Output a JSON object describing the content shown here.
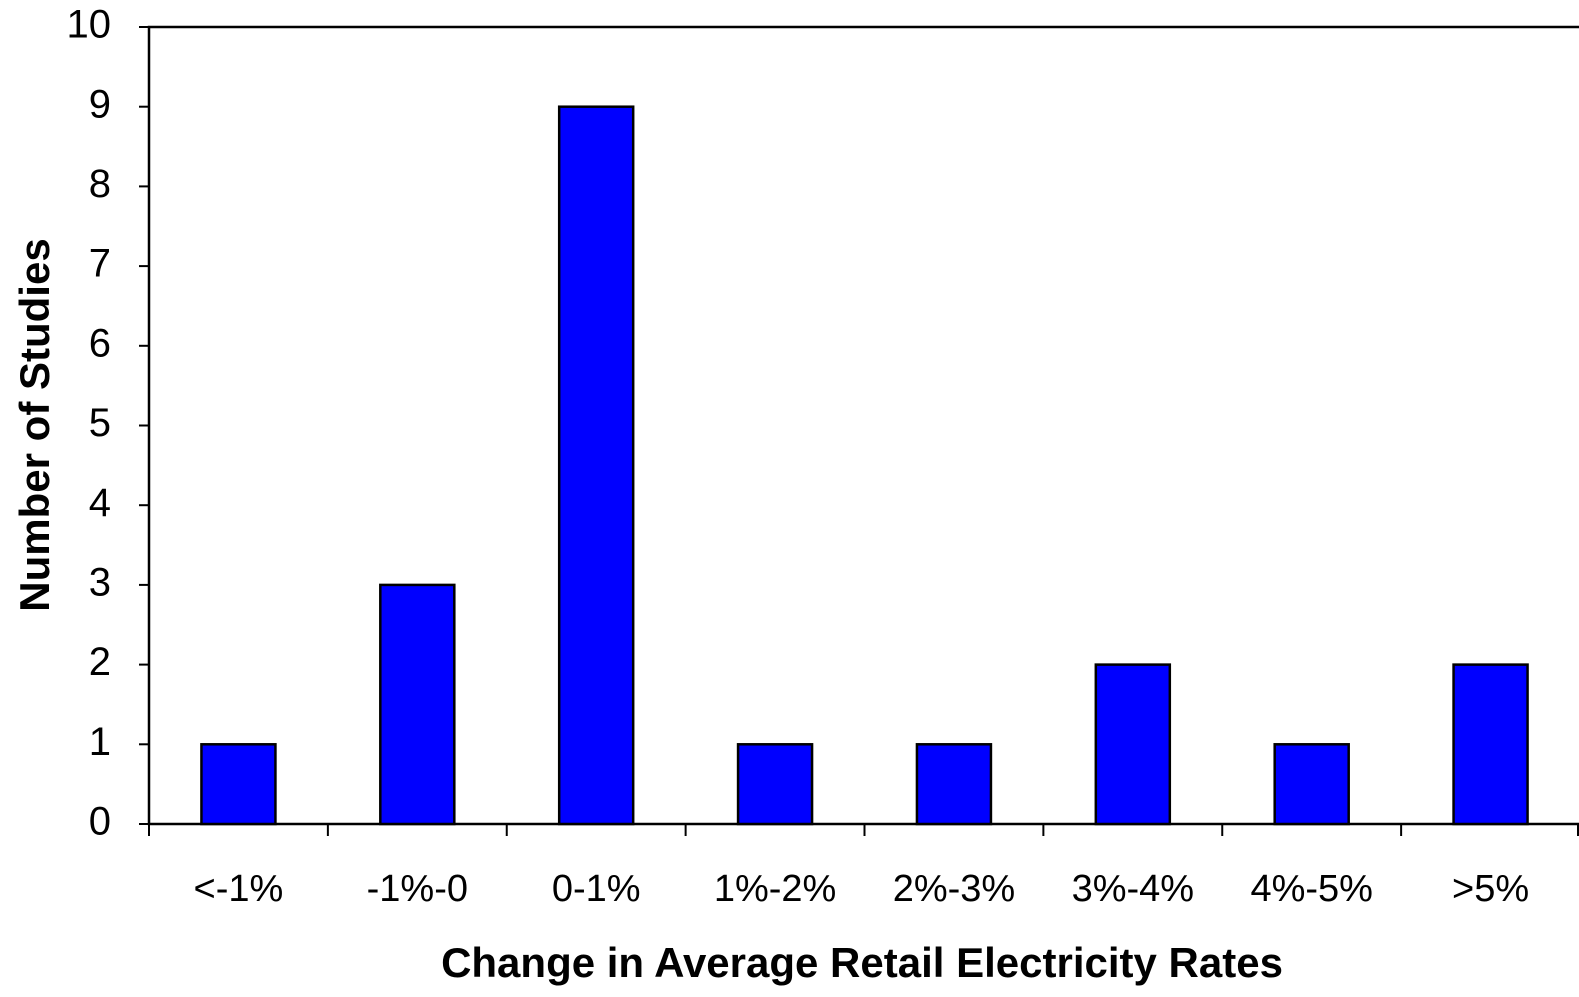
{
  "chart_data": {
    "type": "bar",
    "x_label": "Change in Average Retail Electricity Rates",
    "y_label": "Number of Studies",
    "categories": [
      "<-1%",
      "-1%-0",
      "0-1%",
      "1%-2%",
      "2%-3%",
      "3%-4%",
      "4%-5%",
      ">5%"
    ],
    "values": [
      1,
      3,
      9,
      1,
      1,
      2,
      1,
      2
    ],
    "color": "#0000ff",
    "ylim": [
      0,
      10
    ],
    "yticks": [
      0,
      1,
      2,
      3,
      4,
      5,
      6,
      7,
      8,
      9,
      10
    ],
    "grid": false
  }
}
